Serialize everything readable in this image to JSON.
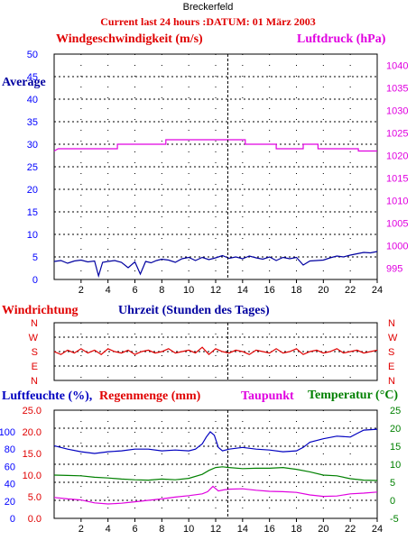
{
  "header": {
    "station": "Breckerfeld",
    "title": "Current last 24 hours :DATUM: 01 März 2003"
  },
  "labels": {
    "wind_speed": "Windgeschwindigkeit (m/s)",
    "pressure": "Luftdruck (hPa)",
    "average": "Average",
    "wind_direction": "Windrichtung",
    "time": "Uhrzeit (Stunden des Tages)",
    "humidity": "Luftfeuchte (%),",
    "rain": "Regenmenge (mm)",
    "dewpoint": "Taupunkt",
    "temperature": "Temperatur (°C)"
  },
  "colors": {
    "wind": "#0000a0",
    "pressure": "#e000e0",
    "direction": "#e00000",
    "humidity": "#0000c0",
    "rain": "#e00000",
    "dewpoint": "#e000e0",
    "temperature": "#008000",
    "axis_left": "#0000ff",
    "axis_right": "#e000e0"
  },
  "chart_data": [
    {
      "type": "line",
      "name": "wind-pressure",
      "x_ticks": [
        2,
        4,
        6,
        8,
        10,
        12,
        14,
        16,
        18,
        20,
        22,
        24
      ],
      "xlim": [
        0,
        24
      ],
      "y_left_ticks": [
        0,
        5,
        10,
        15,
        20,
        25,
        30,
        35,
        40,
        45,
        50
      ],
      "ylim_left": [
        0,
        50
      ],
      "y_right_ticks": [
        995,
        1000,
        1005,
        1010,
        1015,
        1020,
        1025,
        1030,
        1035,
        1040
      ],
      "ylim_right": [
        992.5,
        1042.5
      ],
      "grid": true,
      "current_time": 12.9,
      "series": [
        {
          "axis": "right",
          "color_key": "pressure",
          "x": [
            0,
            0.3,
            0.3,
            4.7,
            4.7,
            8.3,
            8.3,
            14.2,
            14.2,
            16.5,
            16.5,
            18.5,
            18.5,
            19.6,
            19.6,
            22.6,
            22.6,
            24
          ],
          "y": [
            1021,
            1021.5,
            1021.5,
            1021.5,
            1022.5,
            1022.5,
            1023.5,
            1023.5,
            1022.5,
            1022.5,
            1021.5,
            1021.5,
            1022.5,
            1022.5,
            1021.5,
            1021.5,
            1021,
            1021
          ]
        },
        {
          "axis": "left",
          "color_key": "wind",
          "x": [
            0,
            0.5,
            1,
            1.5,
            2,
            2.5,
            3,
            3.3,
            3.6,
            4,
            4.5,
            5,
            5.5,
            6,
            6.4,
            6.8,
            7.2,
            7.6,
            8,
            8.5,
            9,
            9.5,
            10,
            10.5,
            11,
            11.5,
            12,
            12.5,
            13,
            13.5,
            14,
            14.5,
            15,
            15.5,
            16,
            16.5,
            17,
            17.5,
            18,
            18.5,
            19,
            19.5,
            20,
            20.5,
            21,
            21.5,
            22,
            22.5,
            23,
            23.5,
            24
          ],
          "y": [
            4,
            4.2,
            3.6,
            4.1,
            4.3,
            3.9,
            4.1,
            0.8,
            3.8,
            4,
            4.2,
            3.8,
            2.6,
            3.9,
            1.2,
            4,
            3.7,
            4.2,
            4.5,
            4.3,
            3.8,
            4.6,
            4.9,
            4.2,
            4.9,
            4.4,
            4.8,
            5.3,
            4.7,
            5,
            4.6,
            5.2,
            4.8,
            4.5,
            5,
            4.2,
            4.9,
            4.6,
            4.9,
            3.2,
            4.1,
            4.2,
            4.3,
            4.8,
            5.2,
            5,
            5.4,
            5.7,
            6,
            5.9,
            6.2
          ]
        }
      ]
    },
    {
      "type": "line",
      "name": "wind-direction",
      "y_tick_labels": [
        "N",
        "W",
        "S",
        "E",
        "N"
      ],
      "ylim": [
        0,
        4
      ],
      "xlim": [
        0,
        24
      ],
      "grid": true,
      "series": [
        {
          "color_key": "direction",
          "x": [
            0,
            0.5,
            1,
            1.5,
            2,
            2.5,
            3,
            3.5,
            4,
            4.5,
            5,
            5.5,
            6,
            6.5,
            7,
            7.5,
            8,
            8.5,
            9,
            9.5,
            10,
            10.5,
            11,
            11.5,
            12,
            12.5,
            13,
            13.5,
            14,
            14.5,
            15,
            15.5,
            16,
            16.5,
            17,
            17.5,
            18,
            18.5,
            19,
            19.5,
            20,
            20.5,
            21,
            21.5,
            22,
            22.5,
            23,
            23.5,
            24
          ],
          "y": [
            2,
            1.8,
            2.1,
            1.9,
            2.2,
            1.9,
            2.1,
            1.8,
            2.2,
            2,
            1.9,
            2.1,
            1.8,
            2,
            2.1,
            1.9,
            2,
            2.2,
            1.9,
            2,
            2.1,
            1.9,
            2.3,
            1.8,
            2.2,
            2,
            1.9,
            2.1,
            2,
            1.8,
            2.1,
            2,
            1.9,
            2.2,
            1.9,
            2,
            2.2,
            1.8,
            2,
            2.1,
            1.9,
            2,
            2.2,
            1.9,
            2,
            2.1,
            1.9,
            2,
            2.1
          ]
        }
      ]
    },
    {
      "type": "line",
      "name": "humidity-rain-temperature",
      "x_ticks": [
        2,
        4,
        6,
        8,
        10,
        12,
        14,
        16,
        18,
        20,
        22,
        24
      ],
      "xlim": [
        0,
        24
      ],
      "y_humidity_ticks": [
        0,
        20,
        40,
        60,
        80,
        100
      ],
      "ylim_humidity": [
        0,
        125
      ],
      "y_rain_ticks": [
        "0.0",
        "5.0",
        "10.0",
        "15.0",
        "20.0",
        "25.0"
      ],
      "ylim_rain": [
        0,
        25
      ],
      "y_temp_ticks": [
        -5,
        0,
        5,
        10,
        15,
        20,
        25
      ],
      "ylim_temp": [
        -5,
        25
      ],
      "grid": true,
      "series": [
        {
          "axis": "humidity",
          "color_key": "humidity",
          "x": [
            0,
            1,
            2,
            3,
            4,
            5,
            6,
            7,
            8,
            9,
            10,
            10.5,
            11,
            11.3,
            11.6,
            11.9,
            12.2,
            12.5,
            13,
            14,
            15,
            16,
            17,
            18,
            18.5,
            19,
            20,
            21,
            22,
            22.5,
            23,
            24
          ],
          "y": [
            84,
            80,
            77,
            75,
            77,
            78,
            80,
            80,
            78,
            79,
            78,
            80,
            86,
            94,
            100,
            96,
            82,
            78,
            80,
            82,
            80,
            79,
            77,
            78,
            82,
            88,
            92,
            95,
            94,
            98,
            102,
            103
          ]
        },
        {
          "axis": "temp",
          "color_key": "temperature",
          "x": [
            0,
            1,
            2,
            3,
            4,
            5,
            6,
            7,
            8,
            9,
            10,
            11,
            11.5,
            12,
            12.5,
            13,
            14,
            15,
            16,
            17,
            18,
            19,
            20,
            21,
            22,
            23,
            24
          ],
          "y": [
            7,
            6.9,
            6.8,
            6.4,
            6.2,
            5.9,
            5.7,
            5.6,
            5.9,
            5.7,
            6.1,
            7.2,
            8.3,
            9.1,
            9.3,
            9.1,
            8.8,
            8.9,
            8.9,
            9.1,
            8.6,
            7.9,
            7,
            6.8,
            6,
            5.6,
            5.5
          ]
        },
        {
          "axis": "temp",
          "color_key": "dewpoint",
          "x": [
            0,
            1,
            2,
            3,
            4,
            5,
            6,
            7,
            8,
            9,
            10,
            11,
            11.4,
            11.8,
            12.2,
            12.6,
            13,
            14,
            15,
            16,
            17,
            18,
            19,
            20,
            21,
            22,
            23,
            24
          ],
          "y": [
            0.8,
            0.4,
            0.1,
            -0.7,
            -1,
            -0.8,
            -0.4,
            0,
            0.4,
            0.9,
            1.3,
            1.8,
            2.4,
            3.9,
            2.6,
            2.9,
            3.1,
            3.2,
            2.8,
            2.5,
            2.4,
            2.2,
            1.5,
            1.1,
            1.2,
            1.8,
            2,
            2.3
          ]
        }
      ]
    }
  ]
}
